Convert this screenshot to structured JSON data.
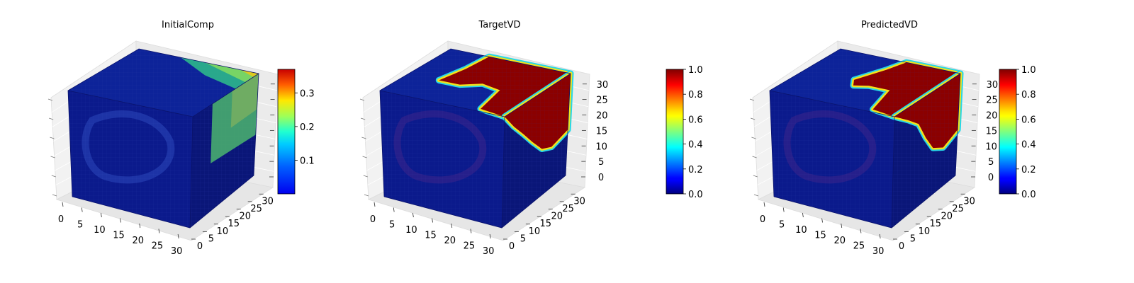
{
  "chart_data": [
    {
      "type": "voxel-3d",
      "title": "InitialComp",
      "x_ticks": [
        "0",
        "5",
        "10",
        "15",
        "20",
        "25",
        "30"
      ],
      "y_ticks": [
        "0",
        "5",
        "10",
        "15",
        "20",
        "25",
        "30"
      ],
      "z_ticks": [],
      "xlim": [
        0,
        32
      ],
      "ylim": [
        0,
        32
      ],
      "zlim": [
        0,
        32
      ],
      "colormap": "jet",
      "colorbar": {
        "min": 0.0,
        "max": 0.37,
        "ticks": [
          "0.1",
          "0.2",
          "0.3"
        ],
        "tick_values": [
          0.1,
          0.2,
          0.3
        ]
      }
    },
    {
      "type": "voxel-3d",
      "title": "TargetVD",
      "x_ticks": [
        "0",
        "5",
        "10",
        "15",
        "20",
        "25",
        "30"
      ],
      "y_ticks": [
        "0",
        "5",
        "10",
        "15",
        "20",
        "25",
        "30"
      ],
      "z_ticks": [
        "0",
        "5",
        "10",
        "15",
        "20",
        "25",
        "30"
      ],
      "xlim": [
        0,
        32
      ],
      "ylim": [
        0,
        32
      ],
      "zlim": [
        0,
        32
      ],
      "colormap": "jet",
      "colorbar": {
        "min": 0.0,
        "max": 1.0,
        "ticks": [
          "0.0",
          "0.2",
          "0.4",
          "0.6",
          "0.8",
          "1.0"
        ],
        "tick_values": [
          0.0,
          0.2,
          0.4,
          0.6,
          0.8,
          1.0
        ]
      }
    },
    {
      "type": "voxel-3d",
      "title": "PredictedVD",
      "x_ticks": [
        "0",
        "5",
        "10",
        "15",
        "20",
        "25",
        "30"
      ],
      "y_ticks": [
        "0",
        "5",
        "10",
        "15",
        "20",
        "25",
        "30"
      ],
      "z_ticks": [
        "0",
        "5",
        "10",
        "15",
        "20",
        "25",
        "30"
      ],
      "xlim": [
        0,
        32
      ],
      "ylim": [
        0,
        32
      ],
      "zlim": [
        0,
        32
      ],
      "colormap": "jet",
      "colorbar": {
        "min": 0.0,
        "max": 1.0,
        "ticks": [
          "0.0",
          "0.2",
          "0.4",
          "0.6",
          "0.8",
          "1.0"
        ],
        "tick_values": [
          0.0,
          0.2,
          0.4,
          0.6,
          0.8,
          1.0
        ]
      }
    }
  ]
}
